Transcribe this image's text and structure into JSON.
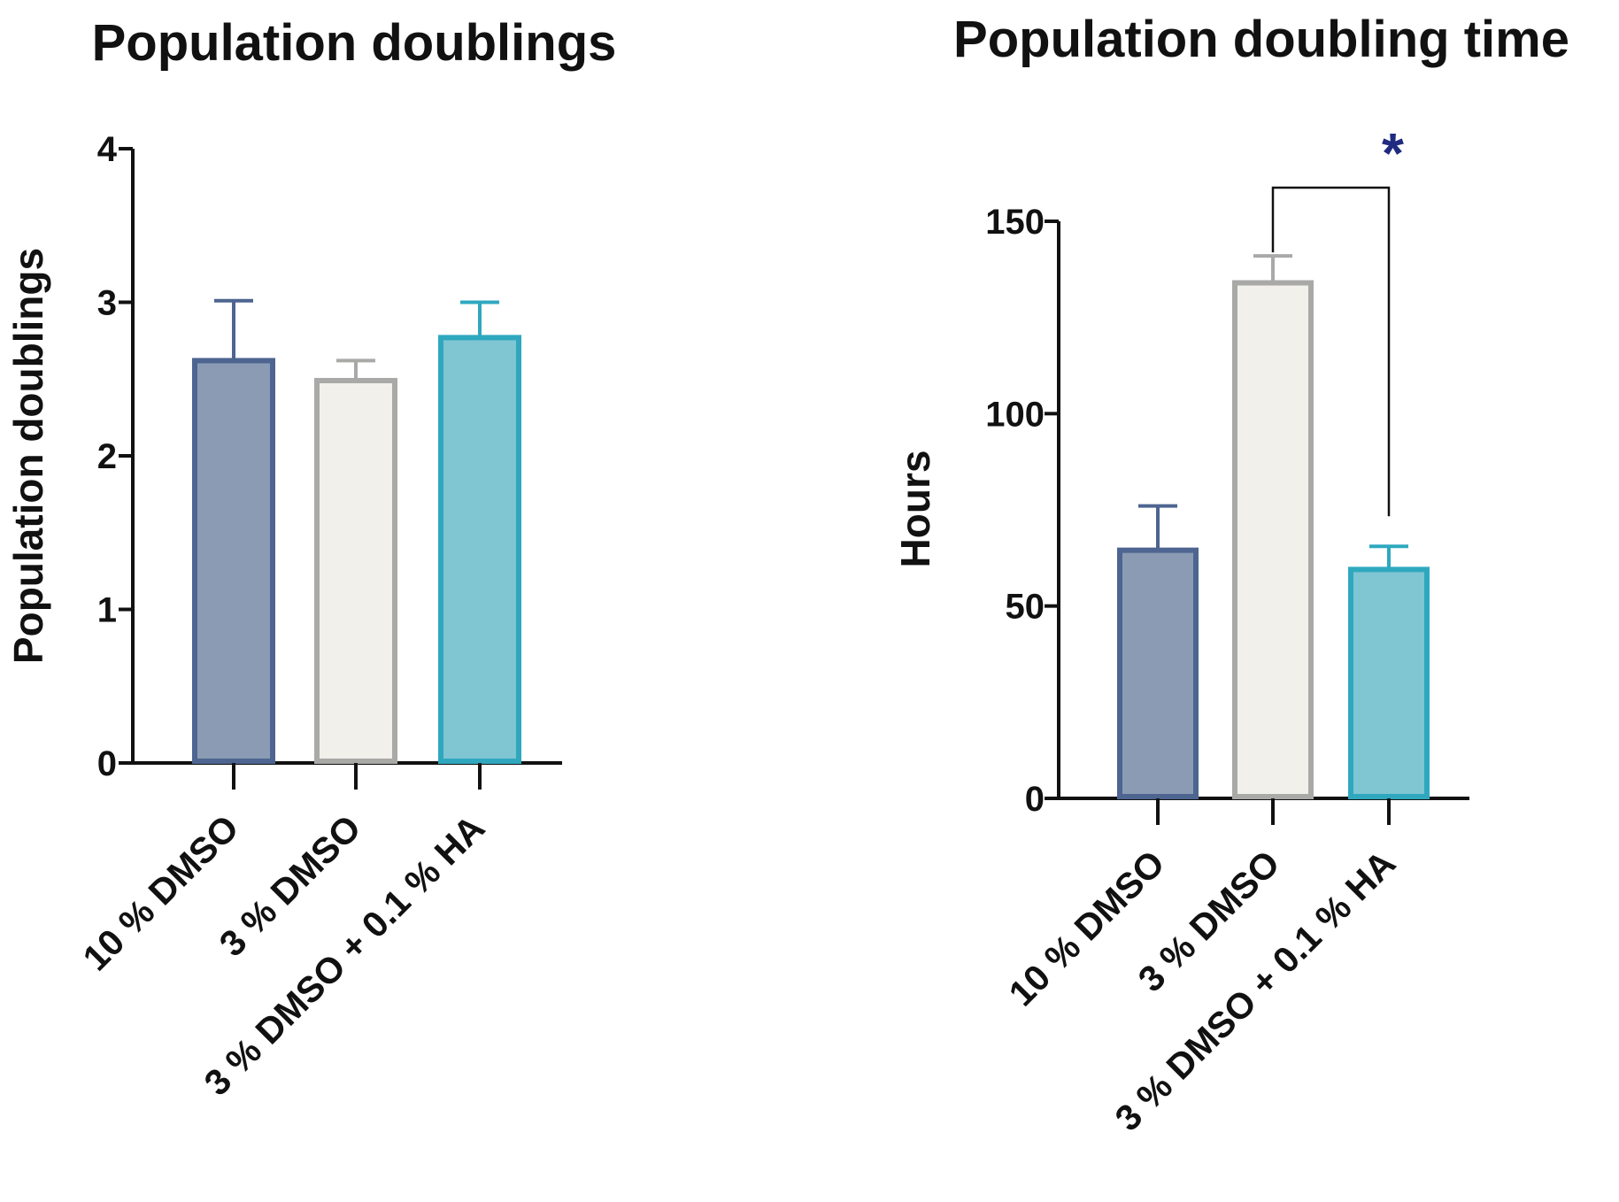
{
  "colors": {
    "series": [
      "#8a9bb3",
      "#f2f0eb",
      "#7fc5d2"
    ],
    "borders": [
      "#4d6590",
      "#a9a9a7",
      "#2fa8bf"
    ],
    "axis": "#111111",
    "significance": "#1f2a80"
  },
  "chart_data": [
    {
      "type": "bar",
      "title": "Population doublings",
      "xlabel": "",
      "ylabel": "Population doublings",
      "categories": [
        "10 % DMSO",
        "3 % DMSO",
        "3 % DMSO + 0.1 % HA"
      ],
      "values": [
        2.62,
        2.49,
        2.77
      ],
      "error_upper": [
        3.01,
        2.62,
        3.0
      ],
      "ylim": [
        0,
        4
      ],
      "yticks": [
        0,
        1,
        2,
        3,
        4
      ],
      "ytick_labels": [
        "0",
        "1",
        "2",
        "3",
        "4"
      ],
      "grid": false
    },
    {
      "type": "bar",
      "title": "Population doubling time",
      "xlabel": "",
      "ylabel": "Hours",
      "categories": [
        "10 % DMSO",
        "3 % DMSO",
        "3 % DMSO + 0.1 % HA"
      ],
      "values": [
        64.5,
        134,
        59.5
      ],
      "error_upper": [
        76,
        141,
        65.5
      ],
      "ylim": [
        0,
        150
      ],
      "yticks": [
        0,
        50,
        100,
        150
      ],
      "ytick_labels": [
        "0",
        "50",
        "100",
        "150"
      ],
      "grid": false,
      "annotations": [
        {
          "type": "significance",
          "from": 1,
          "to": 2,
          "label": "*"
        }
      ]
    }
  ]
}
